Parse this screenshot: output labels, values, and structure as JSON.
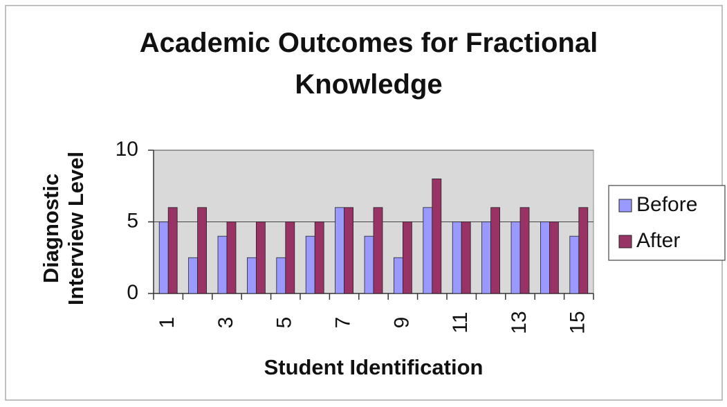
{
  "chart_data": {
    "type": "bar",
    "title": "Academic Outcomes for Fractional Knowledge",
    "x_label": "Student Identification",
    "y_label": "Diagnostic Interview Level",
    "categories": [
      "1",
      null,
      "3",
      null,
      "5",
      null,
      "7",
      null,
      "9",
      null,
      "11",
      null,
      "13",
      null,
      "15"
    ],
    "series": [
      {
        "name": "Before",
        "color": "#9999ff",
        "values": [
          5,
          2.5,
          4,
          2.5,
          2.5,
          4,
          6,
          4,
          2.5,
          6,
          5,
          5,
          5,
          5,
          4
        ]
      },
      {
        "name": "After",
        "color": "#993366",
        "values": [
          6,
          6,
          5,
          5,
          5,
          5,
          6,
          6,
          5,
          8,
          5,
          6,
          6,
          5,
          6
        ]
      }
    ],
    "ylim": [
      0,
      10
    ],
    "yticks": [
      0,
      5,
      10
    ],
    "grid": true,
    "legend": "right"
  }
}
